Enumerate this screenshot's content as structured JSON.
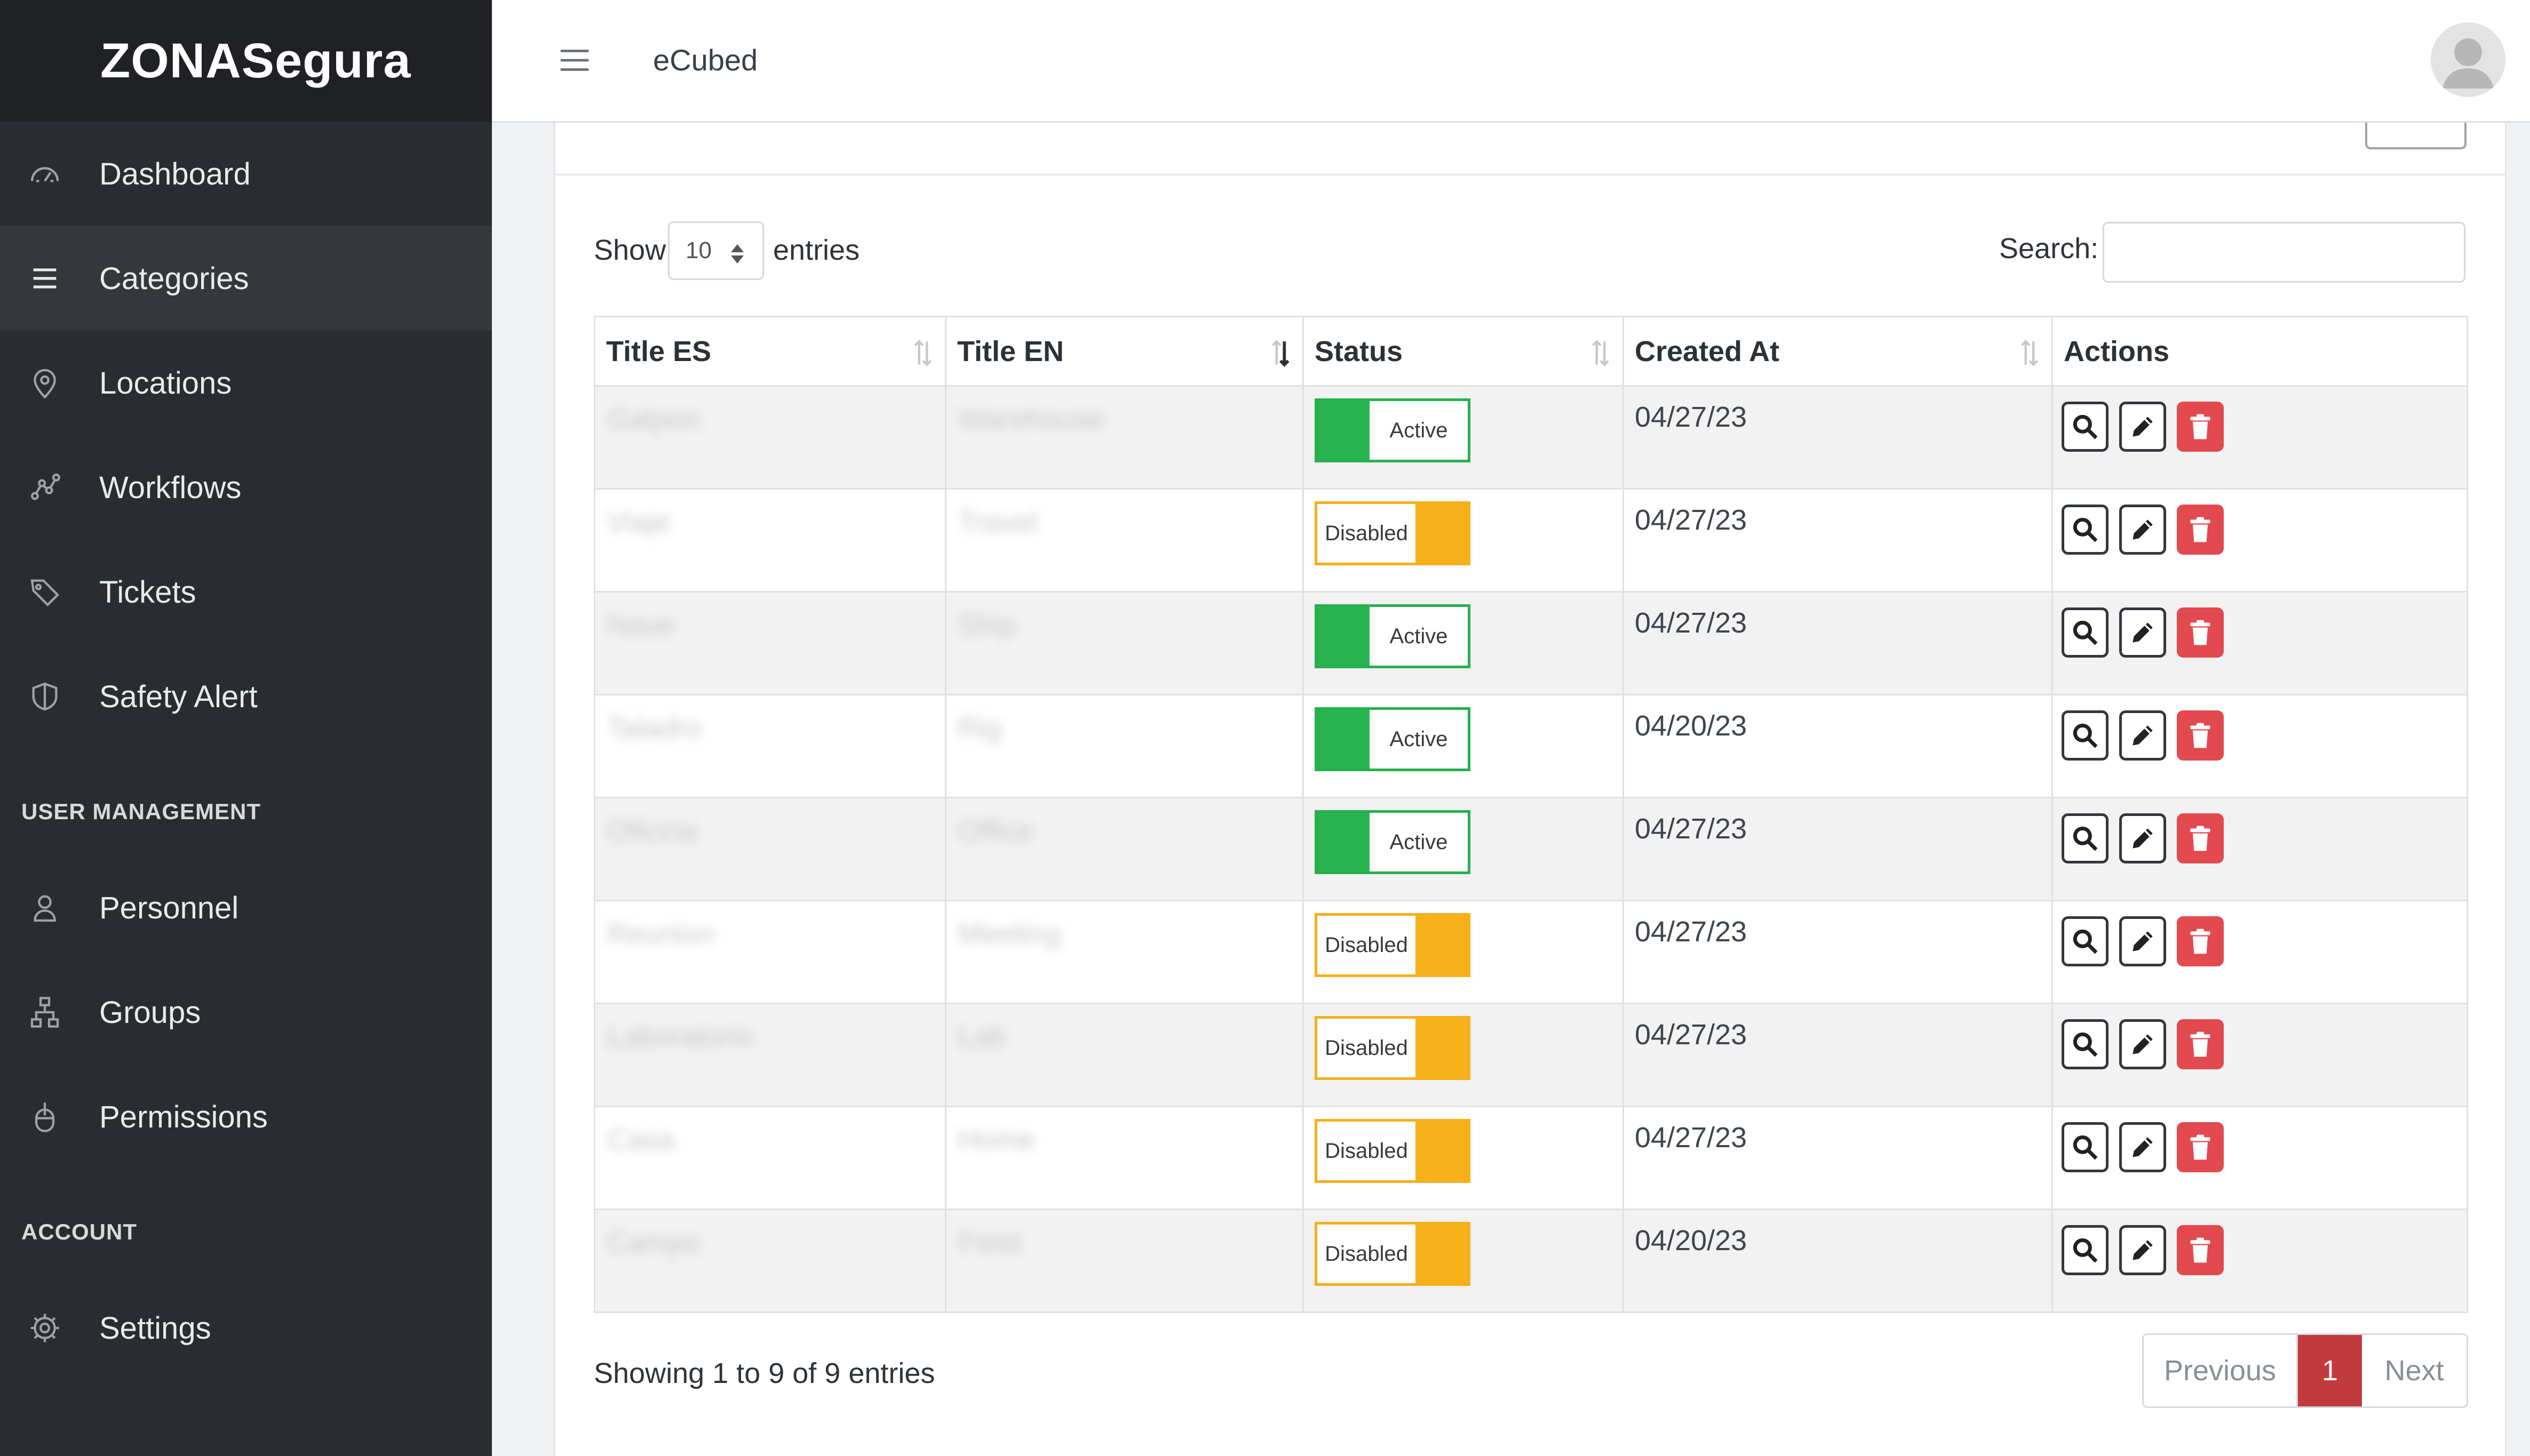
{
  "sidebar": {
    "brand": "ZONASegura",
    "items": [
      {
        "label": "Dashboard",
        "icon": "gauge-icon"
      },
      {
        "label": "Categories",
        "icon": "list-icon",
        "active": true
      },
      {
        "label": "Locations",
        "icon": "map-pin-icon"
      },
      {
        "label": "Workflows",
        "icon": "workflow-icon"
      },
      {
        "label": "Tickets",
        "icon": "tags-icon"
      },
      {
        "label": "Safety Alert",
        "icon": "shield-icon"
      }
    ],
    "section_user": "USER MANAGEMENT",
    "user_items": [
      {
        "label": "Personnel",
        "icon": "person-icon"
      },
      {
        "label": "Groups",
        "icon": "sitemap-icon"
      },
      {
        "label": "Permissions",
        "icon": "mouse-icon"
      }
    ],
    "section_account": "ACCOUNT",
    "account_items": [
      {
        "label": "Settings",
        "icon": "gear-icon"
      }
    ]
  },
  "header": {
    "app_name": "eCubed"
  },
  "table_controls": {
    "show_label": "Show",
    "length_value": "10",
    "entries_label": "entries",
    "search_label": "Search:",
    "search_value": ""
  },
  "table": {
    "columns": [
      "Title ES",
      "Title EN",
      "Status",
      "Created At",
      "Actions"
    ],
    "rows": [
      {
        "title_es": "Galpon",
        "title_en": "Warehouse",
        "status": "Active",
        "created_at": "04/27/23"
      },
      {
        "title_es": "Viaje",
        "title_en": "Travel",
        "status": "Disabled",
        "created_at": "04/27/23"
      },
      {
        "title_es": "Nave",
        "title_en": "Ship",
        "status": "Active",
        "created_at": "04/27/23"
      },
      {
        "title_es": "Taladro",
        "title_en": "Rig",
        "status": "Active",
        "created_at": "04/20/23"
      },
      {
        "title_es": "Oficina",
        "title_en": "Office",
        "status": "Active",
        "created_at": "04/27/23"
      },
      {
        "title_es": "Reunion",
        "title_en": "Meeting",
        "status": "Disabled",
        "created_at": "04/27/23"
      },
      {
        "title_es": "Laboratorio",
        "title_en": "Lab",
        "status": "Disabled",
        "created_at": "04/27/23"
      },
      {
        "title_es": "Casa",
        "title_en": "Home",
        "status": "Disabled",
        "created_at": "04/27/23"
      },
      {
        "title_es": "Campo",
        "title_en": "Field",
        "status": "Disabled",
        "created_at": "04/20/23"
      }
    ]
  },
  "footer": {
    "info": "Showing 1 to 9 of 9 entries",
    "previous": "Previous",
    "page": "1",
    "next": "Next"
  },
  "colors": {
    "sidebar_bg": "#2a2c31",
    "active_green": "#28b34f",
    "disabled_orange": "#f7b11b",
    "delete_red": "#e24a4f",
    "page_active": "#c13a3e"
  }
}
